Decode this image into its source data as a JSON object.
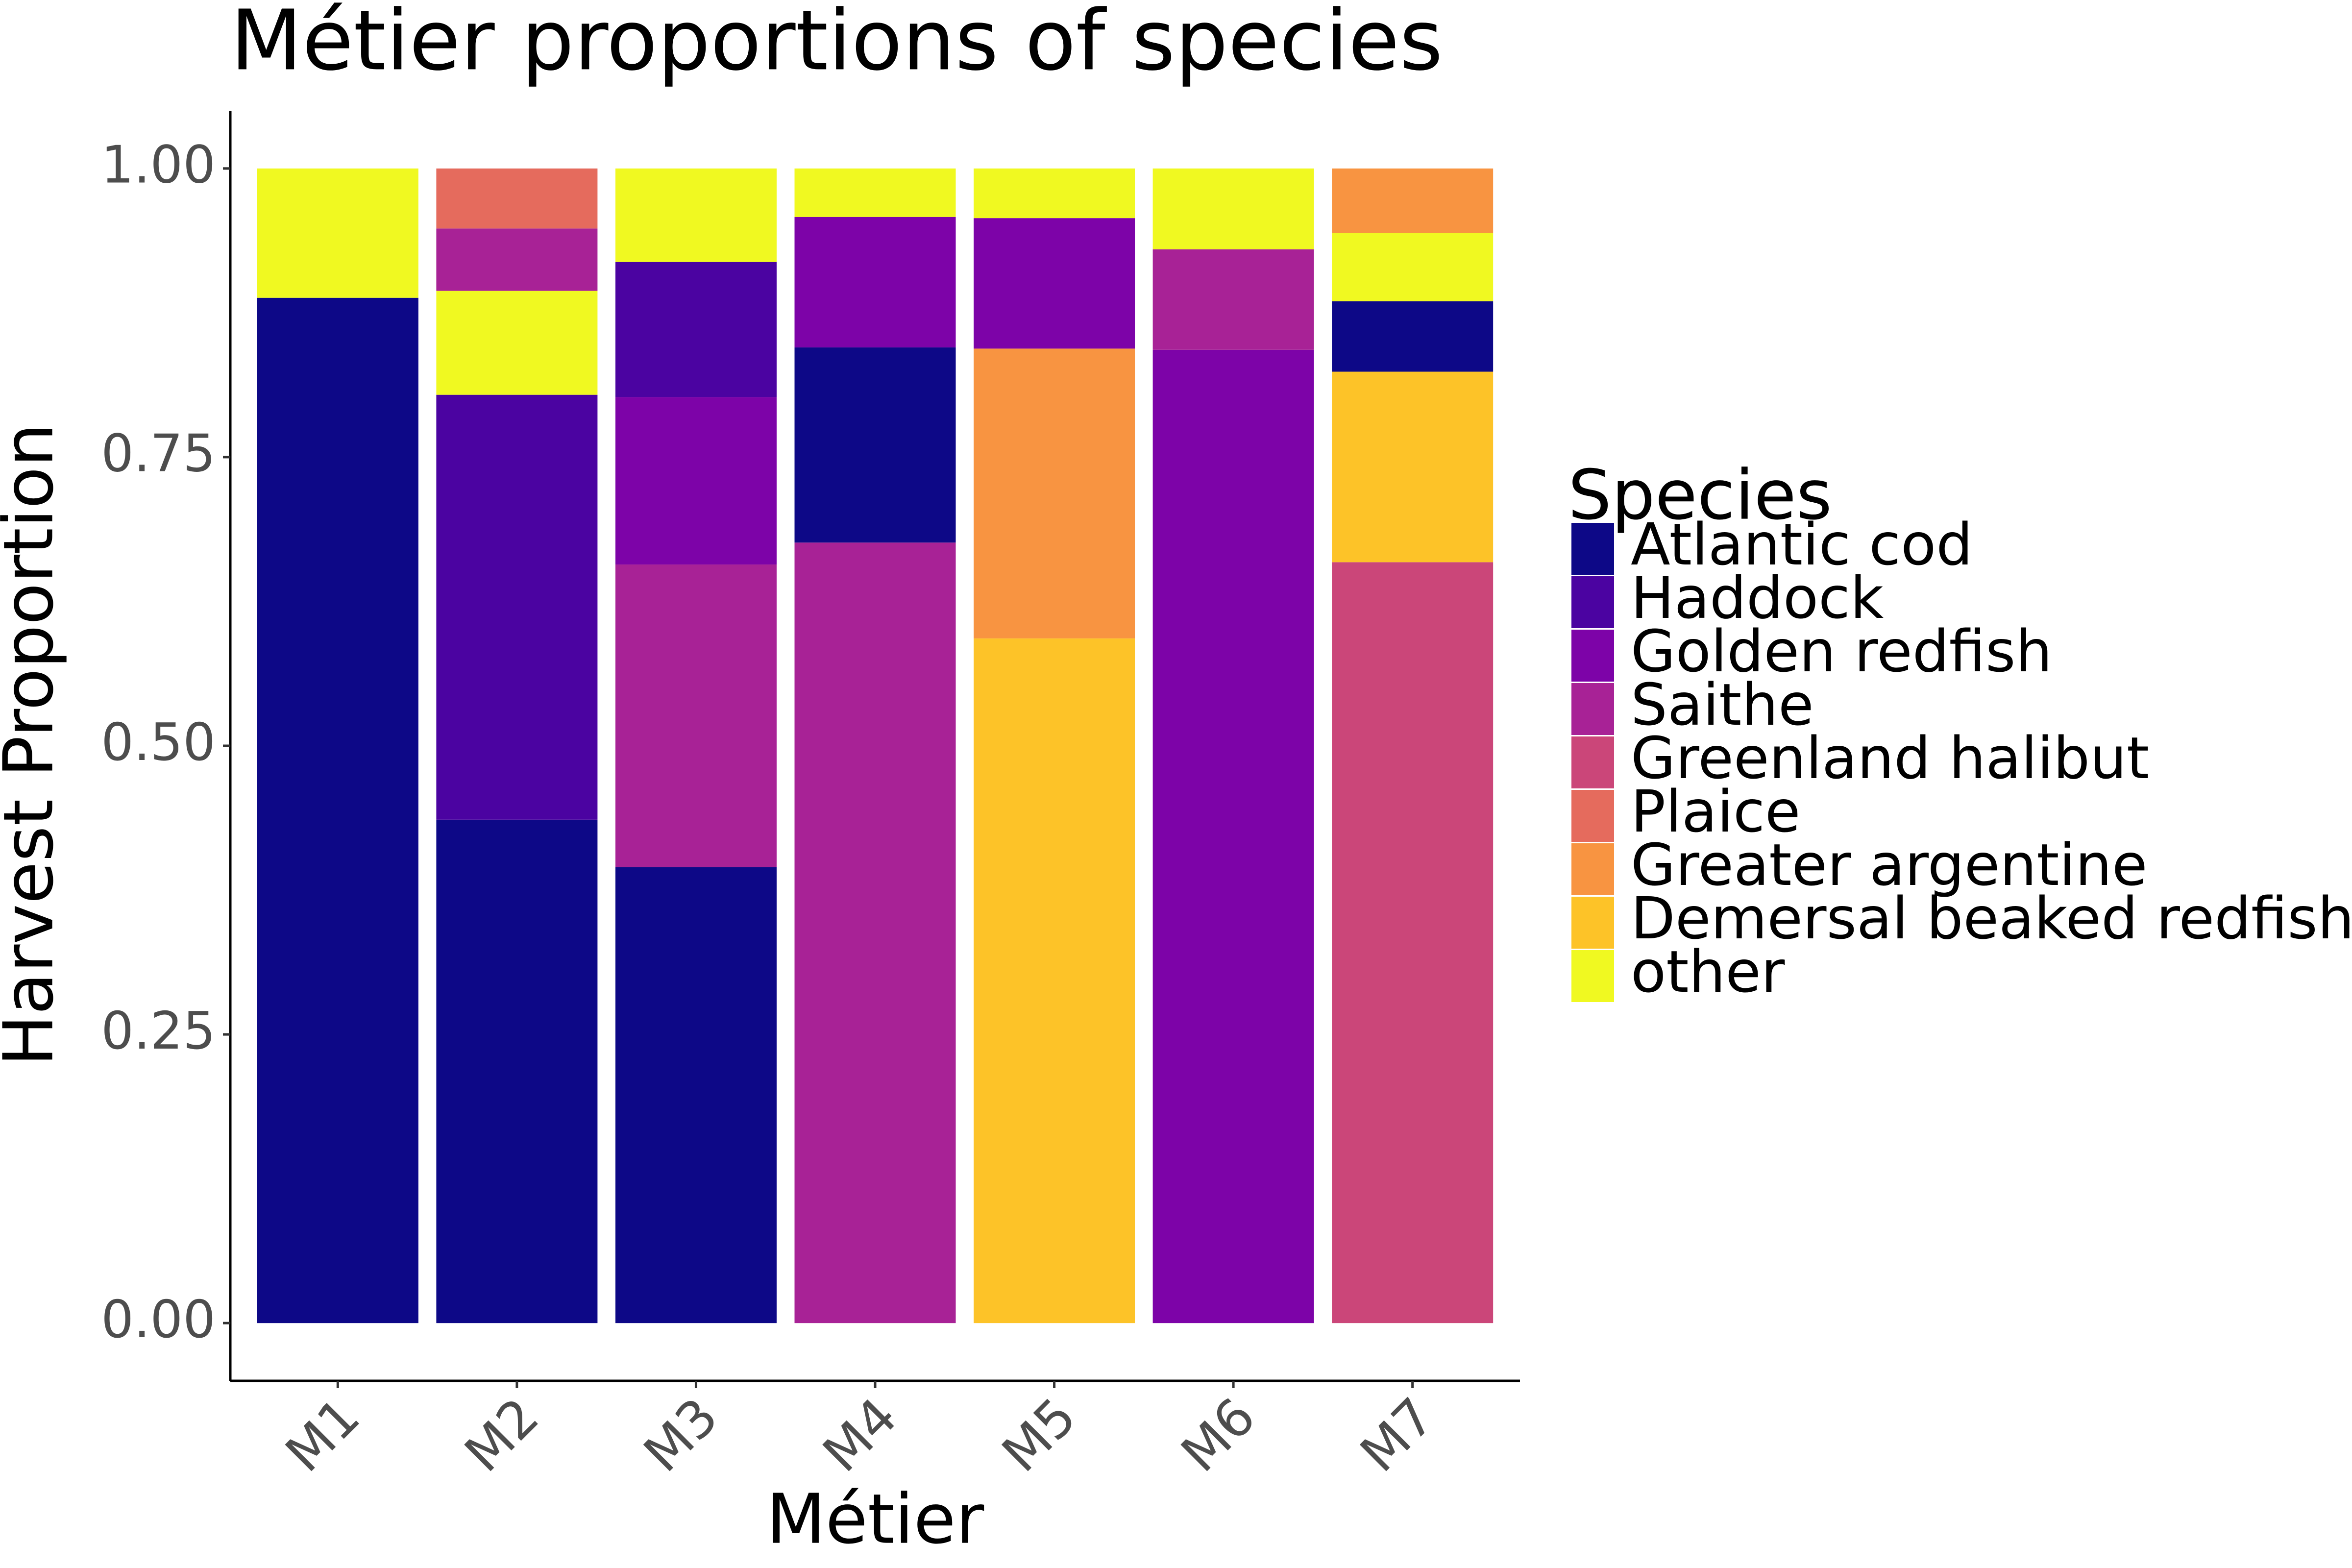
{
  "chart_data": {
    "type": "stacked-bar",
    "title": "Métier proportions of species",
    "x_label": "Métier",
    "y_label": "Harvest Proportion",
    "legend_title": "Species",
    "categories": [
      "M1",
      "M2",
      "M3",
      "M4",
      "M5",
      "M6",
      "M7"
    ],
    "series": [
      {
        "name": "Atlantic cod",
        "color": "#0d0887"
      },
      {
        "name": "Haddock",
        "color": "#4b03a1"
      },
      {
        "name": "Golden redfish",
        "color": "#7d03a8"
      },
      {
        "name": "Saithe",
        "color": "#a82296"
      },
      {
        "name": "Greenland halibut",
        "color": "#cb4679"
      },
      {
        "name": "Plaice",
        "color": "#e56b5d"
      },
      {
        "name": "Greater argentine",
        "color": "#f89441"
      },
      {
        "name": "Demersal beaked redfish",
        "color": "#fdc328"
      },
      {
        "name": "other",
        "color": "#f0f921"
      }
    ],
    "bars": [
      {
        "segments": [
          {
            "series": 0,
            "value": 0.888
          },
          {
            "series": 8,
            "value": 0.112
          }
        ]
      },
      {
        "segments": [
          {
            "series": 0,
            "value": 0.436
          },
          {
            "series": 1,
            "value": 0.368
          },
          {
            "series": 8,
            "value": 0.09
          },
          {
            "series": 3,
            "value": 0.054
          },
          {
            "series": 5,
            "value": 0.052
          }
        ]
      },
      {
        "segments": [
          {
            "series": 0,
            "value": 0.395
          },
          {
            "series": 3,
            "value": 0.262
          },
          {
            "series": 2,
            "value": 0.145
          },
          {
            "series": 1,
            "value": 0.117
          },
          {
            "series": 8,
            "value": 0.081
          }
        ]
      },
      {
        "segments": [
          {
            "series": 3,
            "value": 0.676
          },
          {
            "series": 0,
            "value": 0.169
          },
          {
            "series": 2,
            "value": 0.113
          },
          {
            "series": 8,
            "value": 0.042
          }
        ]
      },
      {
        "segments": [
          {
            "series": 7,
            "value": 0.593
          },
          {
            "series": 6,
            "value": 0.251
          },
          {
            "series": 2,
            "value": 0.113
          },
          {
            "series": 8,
            "value": 0.043
          }
        ]
      },
      {
        "segments": [
          {
            "series": 2,
            "value": 0.843
          },
          {
            "series": 3,
            "value": 0.087
          },
          {
            "series": 8,
            "value": 0.07
          }
        ]
      },
      {
        "segments": [
          {
            "series": 4,
            "value": 0.659
          },
          {
            "series": 7,
            "value": 0.165
          },
          {
            "series": 0,
            "value": 0.061
          },
          {
            "series": 8,
            "value": 0.059
          },
          {
            "series": 6,
            "value": 0.056
          }
        ]
      }
    ],
    "ylim": [
      -0.05,
      1.05
    ],
    "yticks": [
      {
        "value": 0,
        "label": "0.00"
      },
      {
        "value": 0.25,
        "label": "0.25"
      },
      {
        "value": 0.5,
        "label": "0.50"
      },
      {
        "value": 0.75,
        "label": "0.75"
      },
      {
        "value": 1,
        "label": "1.00"
      }
    ],
    "grid": false
  }
}
